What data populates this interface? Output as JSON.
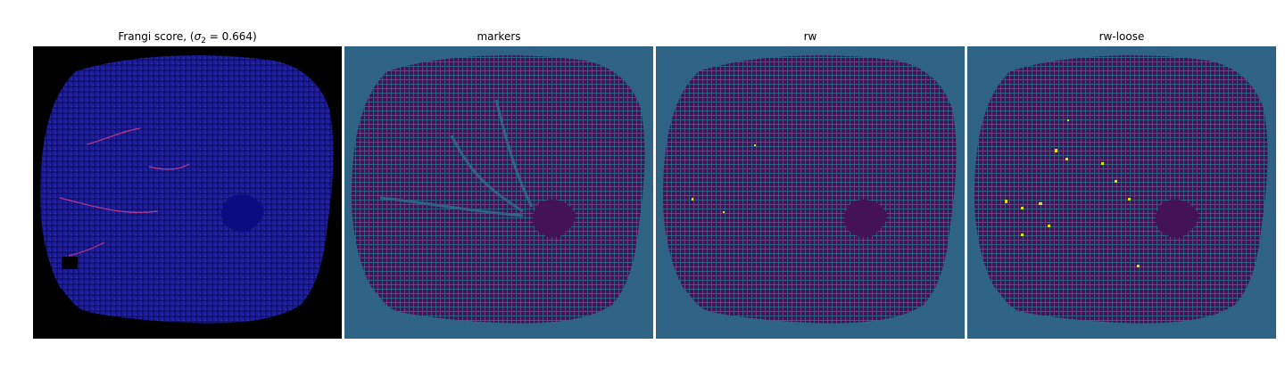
{
  "panels": [
    {
      "title_prefix": "Frangi score, (",
      "title_sigma": "σ",
      "title_sub": "2",
      "title_suffix": " = 0.664)",
      "background": "#000000",
      "tissue": "#16168c",
      "vein": "#d23c8c"
    },
    {
      "title": "markers",
      "background": "#2e6386",
      "tissue": "#441356",
      "vein": "#2e6386"
    },
    {
      "title": "rw",
      "background": "#2e6386",
      "tissue": "#441356",
      "vein": "#d7e219"
    },
    {
      "title": "rw-loose",
      "background": "#2e6386",
      "tissue": "#441356",
      "vein": "#d7e219"
    }
  ]
}
